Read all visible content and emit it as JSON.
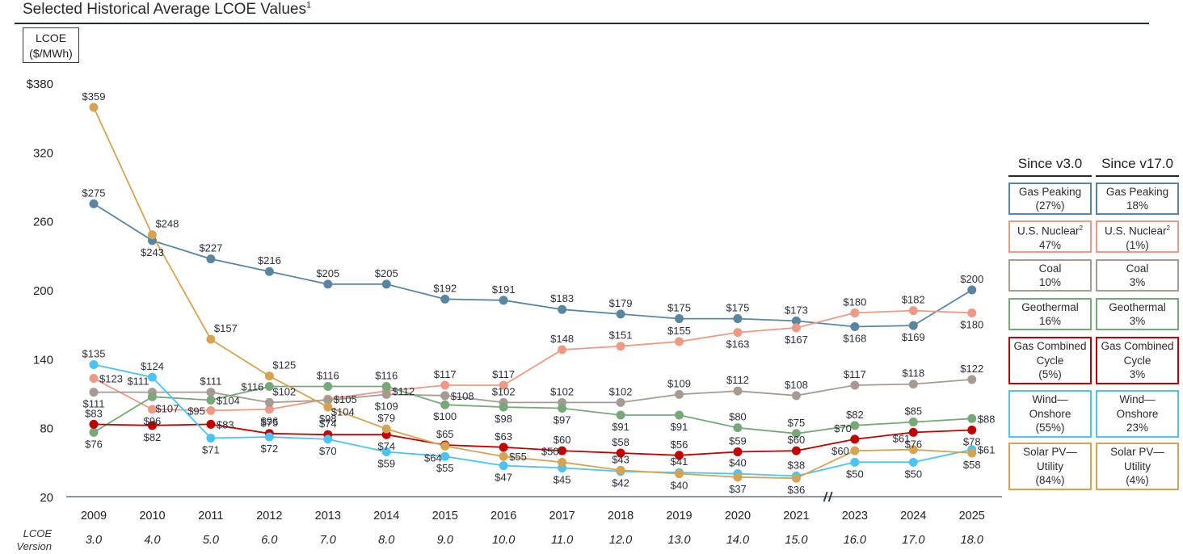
{
  "title": "Selected Historical Average LCOE Values",
  "title_footnote": "1",
  "unit_label_line1": "LCOE",
  "unit_label_line2": "($/MWh)",
  "chart_data": {
    "type": "line",
    "title": "Selected Historical Average LCOE Values",
    "ylabel": "LCOE ($/MWh)",
    "xlabel": "",
    "ylim": [
      20,
      380
    ],
    "yticks": [
      "$380",
      "320",
      "260",
      "200",
      "140",
      "80",
      "20"
    ],
    "ytick_values": [
      380,
      320,
      260,
      200,
      140,
      80,
      20
    ],
    "grid": false,
    "axis_break_between": [
      "2021",
      "2023"
    ],
    "x": [
      "2009",
      "2010",
      "2011",
      "2012",
      "2013",
      "2014",
      "2015",
      "2016",
      "2017",
      "2018",
      "2019",
      "2020",
      "2021",
      "2023",
      "2024",
      "2025"
    ],
    "version_row_label_line1": "LCOE",
    "version_row_label_line2": "Version",
    "versions": [
      "3.0",
      "4.0",
      "5.0",
      "6.0",
      "7.0",
      "8.0",
      "9.0",
      "10.0",
      "11.0",
      "12.0",
      "13.0",
      "14.0",
      "15.0",
      "16.0",
      "17.0",
      "18.0"
    ],
    "series": [
      {
        "name": "Gas Peaking",
        "color": "#5a85a1",
        "values": [
          275,
          243,
          227,
          216,
          205,
          205,
          192,
          191,
          183,
          179,
          175,
          175,
          173,
          168,
          169,
          200
        ],
        "label_pos": [
          "a",
          "b",
          "a",
          "a",
          "a",
          "a",
          "a",
          "a",
          "a",
          "a",
          "a",
          "a",
          "a",
          "b",
          "b",
          "a"
        ]
      },
      {
        "name": "U.S. Nuclear",
        "color": "#ec9a86",
        "values": [
          123,
          96,
          95,
          96,
          105,
          112,
          117,
          117,
          148,
          151,
          155,
          163,
          167,
          180,
          182,
          180
        ],
        "label_pos": [
          "r",
          "b",
          "l",
          "b",
          "r",
          "r",
          "a",
          "a",
          "a",
          "a",
          "a",
          "b",
          "b",
          "a",
          "a",
          "b"
        ]
      },
      {
        "name": "Coal",
        "color": "#a59b92",
        "values": [
          111,
          111,
          111,
          102,
          104,
          109,
          108,
          102,
          102,
          102,
          109,
          112,
          108,
          117,
          118,
          122
        ],
        "label_pos": [
          "b",
          "al",
          "a",
          "ar",
          "br",
          "b",
          "r",
          "a",
          "a",
          "a",
          "a",
          "a",
          "a",
          "a",
          "a",
          "a"
        ]
      },
      {
        "name": "Geothermal",
        "color": "#78a87a",
        "values": [
          76,
          107,
          104,
          116,
          116,
          116,
          100,
          98,
          97,
          91,
          91,
          80,
          75,
          82,
          85,
          88
        ],
        "label_pos": [
          "b",
          "br",
          "r",
          "l",
          "a",
          "a",
          "b",
          "b",
          "b",
          "b",
          "b",
          "a",
          "a",
          "a",
          "a",
          "r"
        ]
      },
      {
        "name": "Gas Combined Cycle",
        "color": "#c00000",
        "values": [
          83,
          82,
          83,
          75,
          74,
          74,
          65,
          63,
          60,
          58,
          56,
          59,
          60,
          70,
          76,
          78
        ],
        "label_pos": [
          "a",
          "b",
          "r",
          "a",
          "a",
          "b",
          "a",
          "a",
          "a",
          "a",
          "a",
          "a",
          "a",
          "al",
          "b",
          "b"
        ]
      },
      {
        "name": "Wind—Onshore",
        "color": "#4cc3f0",
        "values": [
          135,
          124,
          71,
          72,
          70,
          59,
          55,
          47,
          45,
          42,
          41,
          40,
          38,
          50,
          50,
          61
        ],
        "label_pos": [
          "a",
          "a",
          "b",
          "b",
          "b",
          "b",
          "b",
          "b",
          "b",
          "b",
          "a",
          "a",
          "a",
          "b",
          "b",
          "r"
        ]
      },
      {
        "name": "Solar PV—Utility",
        "color": "#d4a353",
        "values": [
          359,
          248,
          157,
          125,
          98,
          79,
          64,
          55,
          50,
          43,
          40,
          37,
          36,
          60,
          61,
          58
        ],
        "label_pos": [
          "a",
          "ar",
          "ar",
          "ar",
          "b",
          "a",
          "bl",
          "r",
          "al",
          "a",
          "b",
          "b",
          "b",
          "l",
          "al",
          "b"
        ]
      }
    ]
  },
  "legend": {
    "columns": [
      {
        "header": "Since v3.0",
        "cells": [
          {
            "name": "Gas Peaking",
            "value": "(27%)"
          },
          {
            "name": "U.S. Nuclear",
            "sup": "2",
            "value": "47%"
          },
          {
            "name": "Coal",
            "value": "10%"
          },
          {
            "name": "Geothermal",
            "value": "16%"
          },
          {
            "name": "Gas Combined Cycle",
            "line1": "Gas Combined",
            "line2": "Cycle",
            "value": "(5%)"
          },
          {
            "name": "Wind—Onshore",
            "line1": "Wind—",
            "line2": "Onshore",
            "value": "(55%)"
          },
          {
            "name": "Solar PV—Utility",
            "line1": "Solar PV—",
            "line2": "Utility",
            "value": "(84%)"
          }
        ]
      },
      {
        "header": "Since v17.0",
        "cells": [
          {
            "name": "Gas Peaking",
            "value": "18%"
          },
          {
            "name": "U.S. Nuclear",
            "sup": "2",
            "value": "(1%)"
          },
          {
            "name": "Coal",
            "value": "3%"
          },
          {
            "name": "Geothermal",
            "value": "3%"
          },
          {
            "name": "Gas Combined Cycle",
            "line1": "Gas Combined",
            "line2": "Cycle",
            "value": "3%"
          },
          {
            "name": "Wind—Onshore",
            "line1": "Wind—",
            "line2": "Onshore",
            "value": "23%"
          },
          {
            "name": "Solar PV—Utility",
            "line1": "Solar PV—",
            "line2": "Utility",
            "value": "(4%)"
          }
        ]
      }
    ]
  }
}
